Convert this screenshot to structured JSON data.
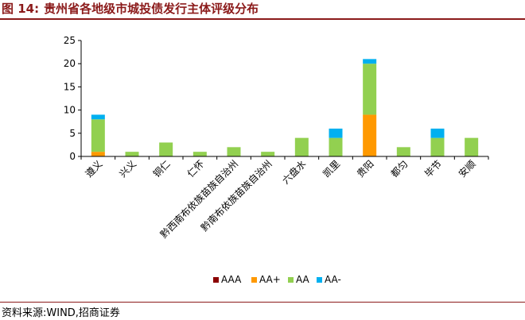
{
  "header": {
    "figure_number": "图 14:",
    "title": "贵州省各地级市城投债发行主体评级分布"
  },
  "footer": {
    "source": "资料来源:WIND,招商证券"
  },
  "chart_data": {
    "type": "bar",
    "stacked": true,
    "categories": [
      "遵义",
      "兴义",
      "铜仁",
      "仁怀",
      "黔西南布依族苗族自治州",
      "黔南布依族苗族自治州",
      "六盘水",
      "凯里",
      "贵阳",
      "都匀",
      "毕节",
      "安顺"
    ],
    "series": [
      {
        "name": "AAA",
        "color": "#8B0000",
        "values": [
          0,
          0,
          0,
          0,
          0,
          0,
          0,
          0,
          0,
          0,
          0,
          0
        ]
      },
      {
        "name": "AA+",
        "color": "#FF9900",
        "values": [
          1,
          0,
          0,
          0,
          0,
          0,
          0,
          0,
          9,
          0,
          0,
          0
        ]
      },
      {
        "name": "AA",
        "color": "#92D050",
        "values": [
          7,
          1,
          3,
          1,
          2,
          1,
          4,
          4,
          11,
          2,
          4,
          4
        ]
      },
      {
        "name": "AA-",
        "color": "#00B0F0",
        "values": [
          1,
          0,
          0,
          0,
          0,
          0,
          0,
          2,
          1,
          0,
          2,
          0
        ]
      }
    ],
    "yticks": [
      0,
      5,
      10,
      15,
      20,
      25
    ],
    "ylim": [
      0,
      25
    ],
    "grid": false,
    "legend_position": "bottom"
  }
}
